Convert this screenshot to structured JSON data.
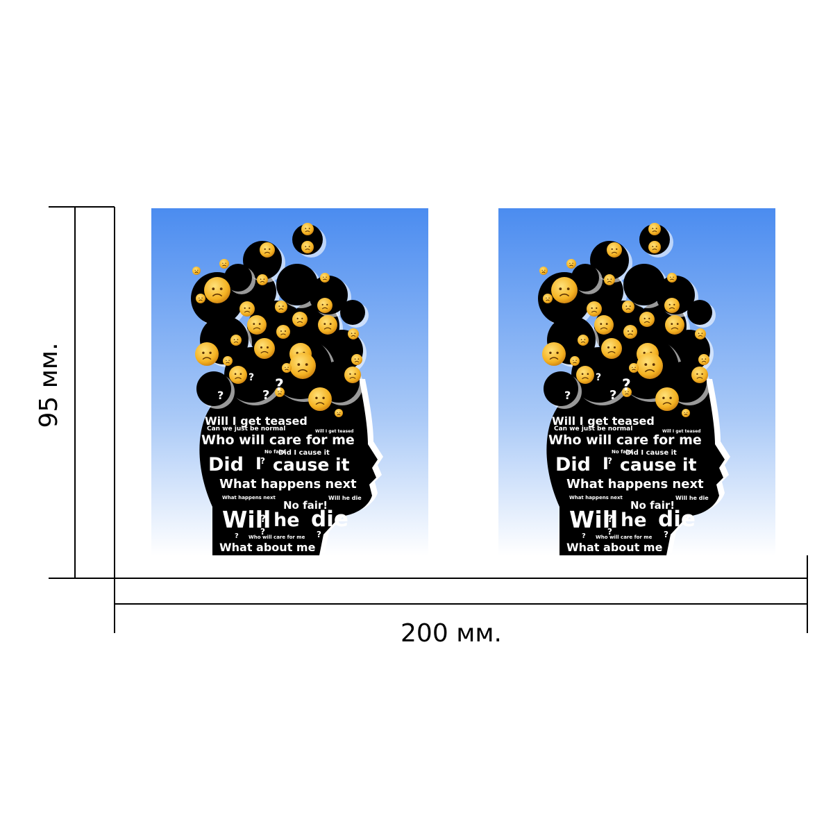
{
  "dimensions": {
    "height": "95 мм.",
    "width": "200 мм."
  },
  "artwork": {
    "texts": [
      "Can we just be normal",
      "Will I get teased",
      "Who will care for me",
      "Did I cause it",
      "Did",
      "I",
      "cause it",
      "What happens next",
      "No fair!",
      "Will he die",
      "Will",
      "he",
      "die",
      "What about me",
      "?"
    ]
  }
}
